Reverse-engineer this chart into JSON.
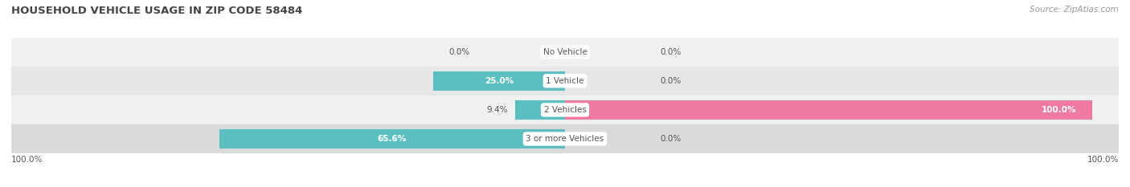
{
  "title": "HOUSEHOLD VEHICLE USAGE IN ZIP CODE 58484",
  "source": "Source: ZipAtlas.com",
  "categories": [
    "No Vehicle",
    "1 Vehicle",
    "2 Vehicles",
    "3 or more Vehicles"
  ],
  "owner_values": [
    0.0,
    25.0,
    9.4,
    65.6
  ],
  "renter_values": [
    0.0,
    0.0,
    100.0,
    0.0
  ],
  "owner_color": "#5bbfc2",
  "renter_color": "#f07aa0",
  "row_bg_colors": [
    "#f0f0f0",
    "#e6e6e6",
    "#f0f0f0",
    "#dadada"
  ],
  "label_color": "#555555",
  "white_label_color": "#ffffff",
  "title_color": "#444444",
  "source_color": "#999999",
  "axis_label_left": "100.0%",
  "axis_label_right": "100.0%",
  "max_value": 100.0,
  "figsize": [
    14.06,
    2.33
  ],
  "dpi": 100
}
